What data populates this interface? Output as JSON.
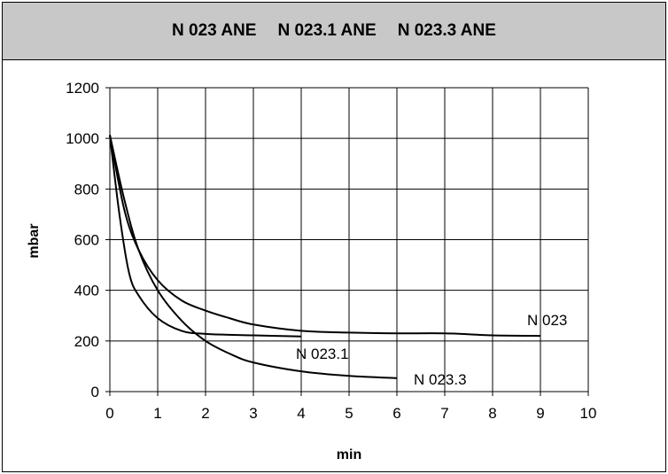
{
  "header": {
    "titles": [
      "N 023 ANE",
      "N 023.1 ANE",
      "N 023.3 ANE"
    ]
  },
  "chart_data": {
    "type": "line",
    "xlabel": "min",
    "ylabel": "mbar",
    "xlim": [
      0,
      10
    ],
    "ylim": [
      0,
      1200
    ],
    "xticks": [
      0,
      1,
      2,
      3,
      4,
      5,
      6,
      7,
      8,
      9,
      10
    ],
    "yticks": [
      0,
      200,
      400,
      600,
      800,
      1000,
      1200
    ],
    "grid": true,
    "series": [
      {
        "name": "N 023",
        "x": [
          0,
          0.3,
          0.6,
          1,
          1.5,
          2,
          2.5,
          3,
          4,
          5,
          6,
          7,
          8,
          9
        ],
        "y": [
          1013,
          720,
          560,
          440,
          360,
          320,
          290,
          265,
          240,
          233,
          230,
          230,
          222,
          220
        ]
      },
      {
        "name": "N 023.1",
        "x": [
          0,
          0.2,
          0.4,
          0.6,
          1,
          1.5,
          2,
          3,
          4
        ],
        "y": [
          1013,
          700,
          470,
          380,
          290,
          240,
          228,
          222,
          218
        ]
      },
      {
        "name": "N 023.3",
        "x": [
          0,
          0.3,
          0.6,
          1,
          1.5,
          2,
          2.5,
          3,
          4,
          5,
          6
        ],
        "y": [
          1013,
          760,
          560,
          400,
          280,
          200,
          150,
          115,
          80,
          62,
          53
        ]
      }
    ],
    "series_labels": [
      "N 023",
      "N 023.1",
      "N 023.3"
    ]
  }
}
